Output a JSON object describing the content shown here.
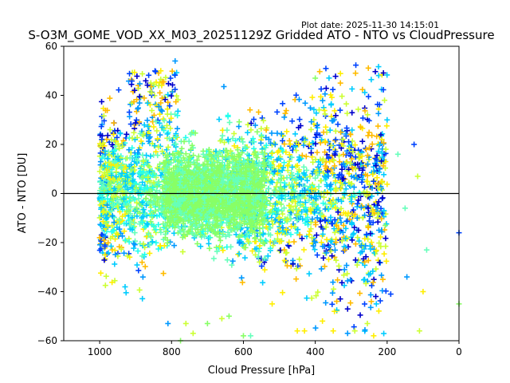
{
  "figure": {
    "plot_date": "Plot date: 2025-11-30 14:15:01"
  },
  "chart_data": {
    "type": "scatter",
    "title": "S-O3M_GOME_VOD_XX_M03_20251129Z Gridded ATO - NTO vs CloudPressure",
    "xlabel": "Cloud Pressure [hPa]",
    "ylabel": "ATO - NTO [DU]",
    "xlim": [
      1100,
      0
    ],
    "ylim": [
      -60,
      60
    ],
    "x_reversed": true,
    "xticks": [
      1000,
      800,
      600,
      400,
      200,
      0
    ],
    "yticks": [
      -60,
      -40,
      -20,
      0,
      20,
      40,
      60
    ],
    "xtick_labels": [
      "1000",
      "800",
      "600",
      "400",
      "200",
      "0"
    ],
    "ytick_labels": [
      "−60",
      "−40",
      "−20",
      "0",
      "20",
      "40",
      "60"
    ],
    "marker": "+",
    "reference_line": {
      "y": 0,
      "color": "#000000"
    },
    "grid": false,
    "legend": "none",
    "palette": [
      "#0000cc",
      "#0044ff",
      "#0099ff",
      "#00ccff",
      "#22ffee",
      "#66ffbb",
      "#88ff66",
      "#ccff33",
      "#ffee00",
      "#ffbb00"
    ],
    "x_value_range": [
      1000,
      200
    ],
    "y_value_range": [
      -60,
      54
    ],
    "core_center": [
      750,
      0
    ],
    "outliers": [
      {
        "x": 0,
        "y": -16,
        "color": "#0044ff"
      },
      {
        "x": 0,
        "y": -45,
        "color": "#88ff66"
      },
      {
        "x": 90,
        "y": -23,
        "color": "#66ffbb"
      },
      {
        "x": 100,
        "y": -40,
        "color": "#ffee00"
      },
      {
        "x": 110,
        "y": -56,
        "color": "#ccff33"
      },
      {
        "x": 115,
        "y": 7,
        "color": "#ccff33"
      },
      {
        "x": 125,
        "y": 20,
        "color": "#0044ff"
      },
      {
        "x": 145,
        "y": -34,
        "color": "#0099ff"
      },
      {
        "x": 150,
        "y": -6,
        "color": "#66ffbb"
      },
      {
        "x": 170,
        "y": 16,
        "color": "#66ffbb"
      },
      {
        "x": 190,
        "y": -41,
        "color": "#0044ff"
      },
      {
        "x": 200,
        "y": 30,
        "color": "#00ccff"
      },
      {
        "x": 205,
        "y": -13,
        "color": "#88ff66"
      },
      {
        "x": 230,
        "y": -45,
        "color": "#00ccff"
      },
      {
        "x": 255,
        "y": -53,
        "color": "#ccff33"
      },
      {
        "x": 290,
        "y": -56,
        "color": "#ccff33"
      },
      {
        "x": 310,
        "y": -57,
        "color": "#0099ff"
      },
      {
        "x": 330,
        "y": 45,
        "color": "#ffbb00"
      },
      {
        "x": 350,
        "y": -56,
        "color": "#ffee00"
      },
      {
        "x": 380,
        "y": -52,
        "color": "#ffee00"
      },
      {
        "x": 400,
        "y": 47,
        "color": "#88ff66"
      },
      {
        "x": 430,
        "y": -56,
        "color": "#ffee00"
      },
      {
        "x": 450,
        "y": -56,
        "color": "#ffee00"
      },
      {
        "x": 520,
        "y": -45,
        "color": "#ffee00"
      },
      {
        "x": 580,
        "y": -58,
        "color": "#66ffbb"
      },
      {
        "x": 600,
        "y": -58,
        "color": "#88ff66"
      },
      {
        "x": 640,
        "y": -50,
        "color": "#88ff66"
      },
      {
        "x": 660,
        "y": -51,
        "color": "#ccff33"
      },
      {
        "x": 700,
        "y": -53,
        "color": "#88ff66"
      },
      {
        "x": 740,
        "y": -57,
        "color": "#ccff33"
      },
      {
        "x": 760,
        "y": -53,
        "color": "#ccff33"
      },
      {
        "x": 775,
        "y": -60,
        "color": "#88ff66"
      },
      {
        "x": 810,
        "y": -53,
        "color": "#0099ff"
      },
      {
        "x": 790,
        "y": 54,
        "color": "#0099ff"
      },
      {
        "x": 830,
        "y": 50,
        "color": "#ffee00"
      },
      {
        "x": 1000,
        "y": -18,
        "color": "#ffbb00"
      },
      {
        "x": 985,
        "y": -25,
        "color": "#ffee00"
      }
    ]
  }
}
